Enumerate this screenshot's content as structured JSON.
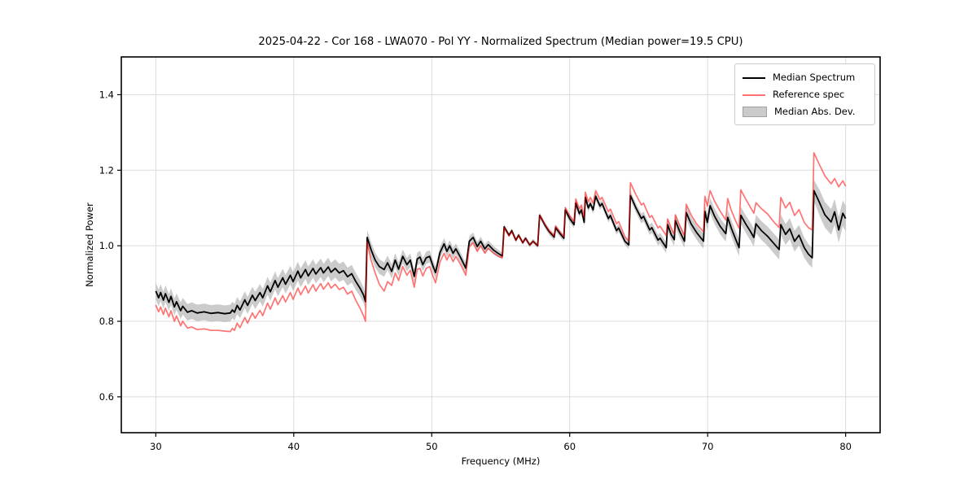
{
  "chart_data": {
    "type": "line",
    "title": "2025-04-22 - Cor 168 - LWA070 - Pol YY - Normalized Spectrum (Median power=19.5 CPU)",
    "xlabel": "Frequency (MHz)",
    "ylabel": "Normalized Power",
    "xlim": [
      27.5,
      82.5
    ],
    "ylim": [
      0.505,
      1.5
    ],
    "xticks": [
      30,
      40,
      50,
      60,
      70,
      80
    ],
    "yticks": [
      0.6,
      0.8,
      1.0,
      1.2,
      1.4
    ],
    "grid": true,
    "legend_position": "upper right",
    "legend": {
      "items": [
        {
          "label": "Median Spectrum",
          "type": "line",
          "color": "#000000"
        },
        {
          "label": "Reference spec",
          "type": "line",
          "color": "rgba(255,0,0,0.55)"
        },
        {
          "label": "Median Abs. Dev.",
          "type": "patch",
          "color": "rgba(140,140,140,0.45)"
        }
      ]
    },
    "colors": {
      "median_line": "#000000",
      "reference_line": "rgba(255,0,0,0.55)",
      "band_fill": "rgba(140,140,140,0.45)",
      "grid": "#dcdcdc",
      "spine": "#000000"
    },
    "columns": [
      "frequency_mhz",
      "median_spectrum",
      "reference_spec"
    ],
    "points": [
      [
        30.0,
        0.88,
        0.843
      ],
      [
        30.2,
        0.862,
        0.825
      ],
      [
        30.35,
        0.876,
        0.838
      ],
      [
        30.55,
        0.856,
        0.818
      ],
      [
        30.7,
        0.873,
        0.835
      ],
      [
        30.95,
        0.85,
        0.812
      ],
      [
        31.1,
        0.866,
        0.828
      ],
      [
        31.35,
        0.838,
        0.8
      ],
      [
        31.5,
        0.852,
        0.814
      ],
      [
        31.8,
        0.828,
        0.788
      ],
      [
        31.95,
        0.84,
        0.8
      ],
      [
        32.3,
        0.824,
        0.782
      ],
      [
        32.6,
        0.828,
        0.785
      ],
      [
        33.0,
        0.822,
        0.778
      ],
      [
        33.5,
        0.825,
        0.78
      ],
      [
        34.0,
        0.821,
        0.776
      ],
      [
        34.5,
        0.823,
        0.776
      ],
      [
        35.0,
        0.82,
        0.774
      ],
      [
        35.4,
        0.822,
        0.773
      ],
      [
        35.55,
        0.83,
        0.781
      ],
      [
        35.7,
        0.824,
        0.776
      ],
      [
        35.9,
        0.842,
        0.795
      ],
      [
        36.1,
        0.83,
        0.783
      ],
      [
        36.45,
        0.857,
        0.81
      ],
      [
        36.65,
        0.842,
        0.795
      ],
      [
        37.0,
        0.869,
        0.822
      ],
      [
        37.2,
        0.855,
        0.808
      ],
      [
        37.55,
        0.876,
        0.829
      ],
      [
        37.75,
        0.862,
        0.815
      ],
      [
        38.1,
        0.894,
        0.848
      ],
      [
        38.3,
        0.878,
        0.832
      ],
      [
        38.65,
        0.908,
        0.862
      ],
      [
        38.85,
        0.89,
        0.844
      ],
      [
        39.2,
        0.915,
        0.868
      ],
      [
        39.4,
        0.898,
        0.851
      ],
      [
        39.75,
        0.922,
        0.876
      ],
      [
        39.95,
        0.905,
        0.858
      ],
      [
        40.3,
        0.933,
        0.888
      ],
      [
        40.5,
        0.915,
        0.87
      ],
      [
        40.85,
        0.937,
        0.893
      ],
      [
        41.05,
        0.92,
        0.875
      ],
      [
        41.4,
        0.94,
        0.897
      ],
      [
        41.6,
        0.925,
        0.88
      ],
      [
        41.95,
        0.942,
        0.9
      ],
      [
        42.15,
        0.928,
        0.885
      ],
      [
        42.5,
        0.944,
        0.902
      ],
      [
        42.7,
        0.93,
        0.888
      ],
      [
        43.0,
        0.94,
        0.898
      ],
      [
        43.3,
        0.928,
        0.884
      ],
      [
        43.6,
        0.934,
        0.89
      ],
      [
        43.9,
        0.918,
        0.872
      ],
      [
        44.2,
        0.926,
        0.88
      ],
      [
        44.5,
        0.905,
        0.855
      ],
      [
        44.8,
        0.888,
        0.835
      ],
      [
        45.05,
        0.87,
        0.815
      ],
      [
        45.2,
        0.852,
        0.8
      ],
      [
        45.32,
        1.022,
        1.01
      ],
      [
        45.6,
        0.99,
        0.962
      ],
      [
        45.9,
        0.962,
        0.928
      ],
      [
        46.2,
        0.945,
        0.898
      ],
      [
        46.55,
        0.937,
        0.88
      ],
      [
        46.8,
        0.955,
        0.905
      ],
      [
        47.1,
        0.932,
        0.895
      ],
      [
        47.35,
        0.962,
        0.928
      ],
      [
        47.6,
        0.938,
        0.908
      ],
      [
        47.9,
        0.972,
        0.945
      ],
      [
        48.2,
        0.95,
        0.922
      ],
      [
        48.45,
        0.962,
        0.935
      ],
      [
        48.73,
        0.919,
        0.89
      ],
      [
        48.95,
        0.965,
        0.938
      ],
      [
        49.15,
        0.97,
        0.94
      ],
      [
        49.35,
        0.95,
        0.92
      ],
      [
        49.6,
        0.968,
        0.94
      ],
      [
        49.85,
        0.972,
        0.945
      ],
      [
        50.1,
        0.945,
        0.918
      ],
      [
        50.28,
        0.929,
        0.902
      ],
      [
        50.6,
        0.982,
        0.957
      ],
      [
        50.9,
        1.005,
        0.98
      ],
      [
        51.1,
        0.985,
        0.962
      ],
      [
        51.3,
        1.0,
        0.978
      ],
      [
        51.55,
        0.98,
        0.958
      ],
      [
        51.75,
        0.992,
        0.972
      ],
      [
        52.1,
        0.968,
        0.95
      ],
      [
        52.47,
        0.941,
        0.922
      ],
      [
        52.72,
        1.012,
        0.997
      ],
      [
        53.0,
        1.022,
        1.008
      ],
      [
        53.3,
        0.998,
        0.985
      ],
      [
        53.55,
        1.012,
        1.0
      ],
      [
        53.85,
        0.992,
        0.98
      ],
      [
        54.1,
        1.003,
        0.993
      ],
      [
        54.5,
        0.988,
        0.98
      ],
      [
        54.8,
        0.98,
        0.973
      ],
      [
        55.12,
        0.973,
        0.968
      ],
      [
        55.25,
        1.05,
        1.048
      ],
      [
        55.6,
        1.028,
        1.026
      ],
      [
        55.8,
        1.04,
        1.038
      ],
      [
        56.1,
        1.015,
        1.014
      ],
      [
        56.3,
        1.028,
        1.027
      ],
      [
        56.6,
        1.008,
        1.008
      ],
      [
        56.8,
        1.02,
        1.02
      ],
      [
        57.1,
        1.002,
        1.002
      ],
      [
        57.35,
        1.012,
        1.012
      ],
      [
        57.68,
        1.0,
        1.0
      ],
      [
        57.82,
        1.081,
        1.081
      ],
      [
        58.2,
        1.055,
        1.057
      ],
      [
        58.5,
        1.038,
        1.04
      ],
      [
        58.88,
        1.023,
        1.026
      ],
      [
        58.98,
        1.048,
        1.052
      ],
      [
        59.3,
        1.032,
        1.036
      ],
      [
        59.58,
        1.02,
        1.024
      ],
      [
        59.68,
        1.095,
        1.101
      ],
      [
        60.0,
        1.072,
        1.08
      ],
      [
        60.32,
        1.056,
        1.064
      ],
      [
        60.44,
        1.113,
        1.124
      ],
      [
        60.7,
        1.085,
        1.098
      ],
      [
        60.85,
        1.095,
        1.108
      ],
      [
        61.05,
        1.062,
        1.075
      ],
      [
        61.14,
        1.128,
        1.142
      ],
      [
        61.35,
        1.1,
        1.116
      ],
      [
        61.5,
        1.112,
        1.128
      ],
      [
        61.7,
        1.095,
        1.112
      ],
      [
        61.88,
        1.131,
        1.146
      ],
      [
        62.2,
        1.105,
        1.122
      ],
      [
        62.35,
        1.112,
        1.128
      ],
      [
        62.8,
        1.072,
        1.09
      ],
      [
        62.95,
        1.08,
        1.097
      ],
      [
        63.4,
        1.04,
        1.058
      ],
      [
        63.55,
        1.047,
        1.064
      ],
      [
        64.0,
        1.012,
        1.024
      ],
      [
        64.28,
        1.002,
        1.013
      ],
      [
        64.4,
        1.133,
        1.167
      ],
      [
        64.8,
        1.1,
        1.135
      ],
      [
        65.2,
        1.072,
        1.108
      ],
      [
        65.35,
        1.078,
        1.113
      ],
      [
        65.8,
        1.042,
        1.075
      ],
      [
        65.95,
        1.048,
        1.08
      ],
      [
        66.4,
        1.015,
        1.047
      ],
      [
        66.55,
        1.02,
        1.052
      ],
      [
        67.0,
        0.995,
        1.027
      ],
      [
        67.1,
        1.056,
        1.071
      ],
      [
        67.35,
        1.03,
        1.048
      ],
      [
        67.58,
        1.016,
        1.03
      ],
      [
        67.66,
        1.067,
        1.082
      ],
      [
        67.95,
        1.04,
        1.056
      ],
      [
        68.32,
        1.012,
        1.027
      ],
      [
        68.45,
        1.088,
        1.11
      ],
      [
        68.8,
        1.058,
        1.082
      ],
      [
        69.2,
        1.035,
        1.058
      ],
      [
        69.7,
        1.012,
        1.037
      ],
      [
        69.8,
        1.091,
        1.131
      ],
      [
        69.98,
        1.062,
        1.105
      ],
      [
        70.18,
        1.106,
        1.146
      ],
      [
        70.5,
        1.078,
        1.118
      ],
      [
        70.9,
        1.052,
        1.092
      ],
      [
        71.32,
        1.032,
        1.068
      ],
      [
        71.45,
        1.075,
        1.125
      ],
      [
        71.7,
        1.048,
        1.095
      ],
      [
        72.0,
        1.02,
        1.068
      ],
      [
        72.28,
        0.995,
        1.046
      ],
      [
        72.4,
        1.081,
        1.148
      ],
      [
        72.75,
        1.058,
        1.124
      ],
      [
        73.1,
        1.038,
        1.102
      ],
      [
        73.35,
        1.022,
        1.086
      ],
      [
        73.5,
        1.058,
        1.114
      ],
      [
        73.9,
        1.04,
        1.098
      ],
      [
        74.35,
        1.025,
        1.084
      ],
      [
        74.8,
        1.006,
        1.063
      ],
      [
        75.18,
        0.99,
        1.048
      ],
      [
        75.3,
        1.056,
        1.128
      ],
      [
        75.65,
        1.03,
        1.1
      ],
      [
        75.95,
        1.045,
        1.115
      ],
      [
        76.3,
        1.012,
        1.08
      ],
      [
        76.62,
        1.028,
        1.096
      ],
      [
        77.0,
        0.995,
        1.062
      ],
      [
        77.3,
        0.978,
        1.048
      ],
      [
        77.58,
        0.968,
        1.042
      ],
      [
        77.7,
        1.146,
        1.246
      ],
      [
        78.1,
        1.115,
        1.215
      ],
      [
        78.5,
        1.082,
        1.185
      ],
      [
        78.95,
        1.063,
        1.164
      ],
      [
        79.2,
        1.09,
        1.178
      ],
      [
        79.5,
        1.042,
        1.156
      ],
      [
        79.8,
        1.086,
        1.172
      ],
      [
        80.0,
        1.072,
        1.158
      ]
    ],
    "mad_band_halfwidth": [
      [
        30,
        0.022
      ],
      [
        36,
        0.022
      ],
      [
        40,
        0.025
      ],
      [
        44,
        0.024
      ],
      [
        45.3,
        0.02
      ],
      [
        48,
        0.018
      ],
      [
        50,
        0.016
      ],
      [
        53,
        0.013
      ],
      [
        55,
        0.01
      ],
      [
        55.3,
        0.006
      ],
      [
        57.6,
        0.006
      ],
      [
        58,
        0.008
      ],
      [
        61,
        0.01
      ],
      [
        64,
        0.01
      ],
      [
        64.5,
        0.012
      ],
      [
        67,
        0.015
      ],
      [
        68.5,
        0.018
      ],
      [
        70,
        0.02
      ],
      [
        72,
        0.022
      ],
      [
        74,
        0.025
      ],
      [
        76,
        0.028
      ],
      [
        77.6,
        0.026
      ],
      [
        78,
        0.034
      ],
      [
        80,
        0.034
      ]
    ]
  }
}
